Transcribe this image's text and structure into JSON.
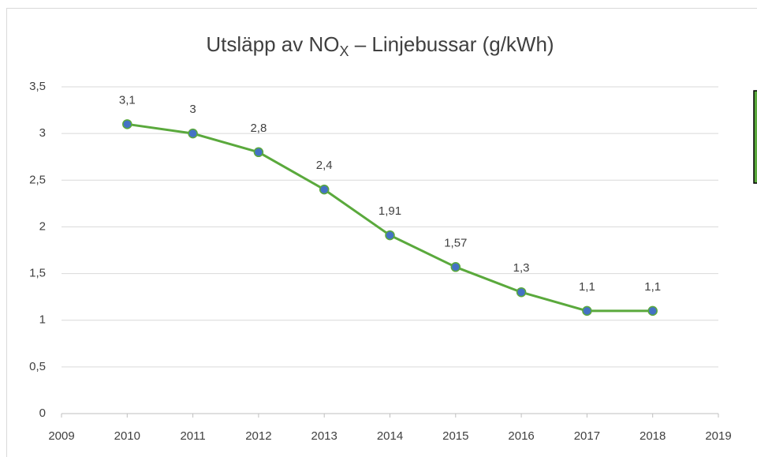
{
  "chart_data": {
    "type": "line",
    "title": {
      "text": "Utsläpp av NO",
      "subscript": "X",
      "suffix": " – Linjebussar (g/kWh)"
    },
    "x": [
      2010,
      2011,
      2012,
      2013,
      2014,
      2015,
      2016,
      2017,
      2018
    ],
    "series": [
      {
        "color": "#5aa93c",
        "marker_color": "#4472c4",
        "values": [
          3.1,
          3,
          2.8,
          2.4,
          1.91,
          1.57,
          1.3,
          1.1,
          1.1
        ],
        "value_labels": [
          "3,1",
          "3",
          "2,8",
          "2,4",
          "1,91",
          "1,57",
          "1,3",
          "1,1",
          "1,1"
        ]
      }
    ],
    "xlim": [
      2009,
      2019
    ],
    "xticks": [
      2009,
      2010,
      2011,
      2012,
      2013,
      2014,
      2015,
      2016,
      2017,
      2018,
      2019
    ],
    "ylim": [
      0,
      3.5
    ],
    "yticks": [
      0,
      {
        "value": 0.5,
        "label": "0,5"
      },
      1,
      {
        "value": 1.5,
        "label": "1,5"
      },
      2,
      {
        "value": 2.5,
        "label": "2,5"
      },
      3,
      {
        "value": 3.5,
        "label": "3,5"
      }
    ],
    "grid": true
  }
}
